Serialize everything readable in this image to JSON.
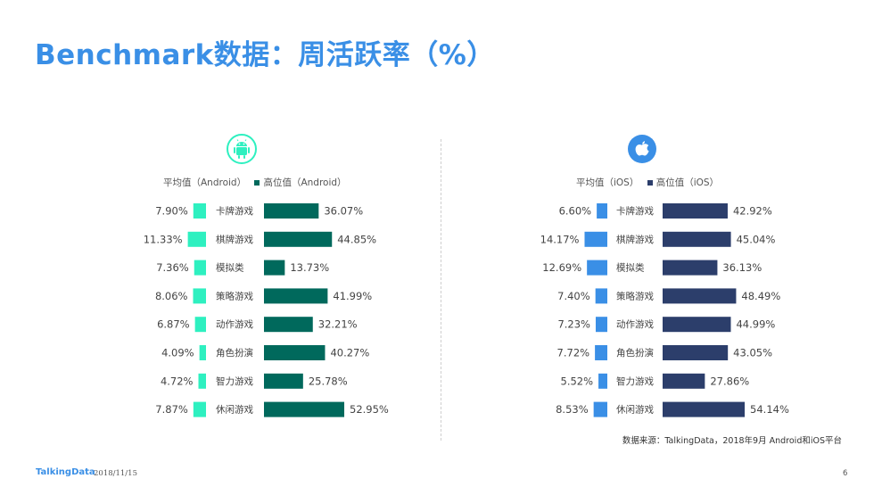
{
  "title": "Benchmark数据：周活跃率（%）",
  "source": "数据来源：TalkingData，2018年9月 Android和iOS平台",
  "footer": {
    "brand": "TalkingData",
    "date": "2018/11/15",
    "page": "6"
  },
  "colors": {
    "title": "#3a8fe6",
    "android_avg": "#2ef0c0",
    "android_high": "#00695c",
    "ios_avg": "#3a8fe6",
    "ios_high": "#2c3e6b"
  },
  "icons": {
    "android": "android-icon",
    "ios": "apple-icon"
  },
  "legend": {
    "android": {
      "avg": "平均值（Android）",
      "high": "高位值（Android）"
    },
    "ios": {
      "avg": "平均值（iOS）",
      "high": "高位值（iOS）"
    }
  },
  "chart_data": [
    {
      "type": "bar",
      "platform": "Android",
      "categories": [
        "卡牌游戏",
        "棋牌游戏",
        "模拟类",
        "策略游戏",
        "动作游戏",
        "角色扮演",
        "智力游戏",
        "休闲游戏"
      ],
      "series": [
        {
          "name": "平均值（Android）",
          "values": [
            7.9,
            11.33,
            7.36,
            8.06,
            6.87,
            4.09,
            4.72,
            7.87
          ]
        },
        {
          "name": "高位值（Android）",
          "values": [
            36.07,
            44.85,
            13.73,
            41.99,
            32.21,
            40.27,
            25.78,
            52.95
          ]
        }
      ],
      "unit": "%"
    },
    {
      "type": "bar",
      "platform": "iOS",
      "categories": [
        "卡牌游戏",
        "棋牌游戏",
        "模拟类",
        "策略游戏",
        "动作游戏",
        "角色扮演",
        "智力游戏",
        "休闲游戏"
      ],
      "series": [
        {
          "name": "平均值（iOS）",
          "values": [
            6.6,
            14.17,
            12.69,
            7.4,
            7.23,
            7.72,
            5.52,
            8.53
          ]
        },
        {
          "name": "高位值（iOS）",
          "values": [
            42.92,
            45.04,
            36.13,
            48.49,
            44.99,
            43.05,
            27.86,
            54.14
          ]
        }
      ],
      "unit": "%"
    }
  ]
}
